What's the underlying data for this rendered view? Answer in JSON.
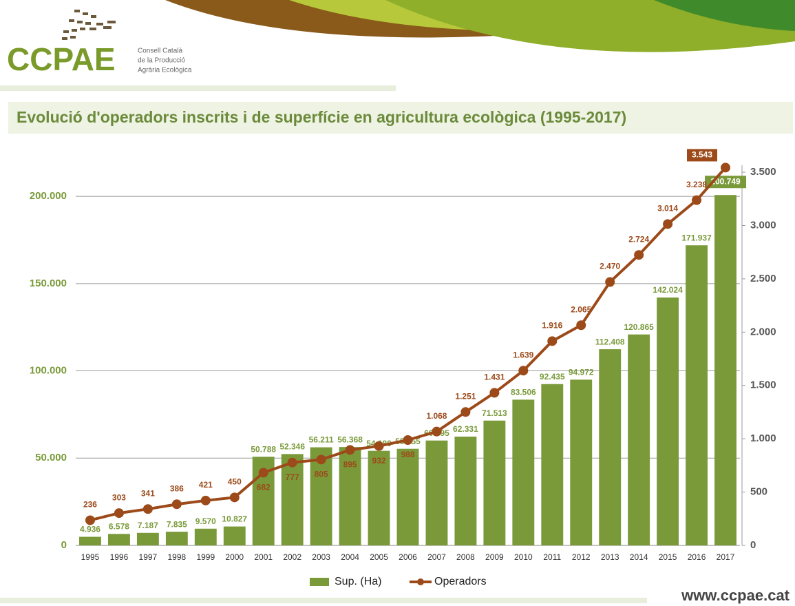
{
  "header": {
    "logo": "CCPAE",
    "org_lines": [
      "Consell Català",
      "de la Producció",
      "Agrària Ecològica"
    ]
  },
  "footer": {
    "url": "www.ccpae.cat"
  },
  "chart_data": {
    "type": "bar-line",
    "title": "Evolució d'operadors inscrits i de superfície en agricultura ecològica (1995-2017)",
    "categories": [
      "1995",
      "1996",
      "1997",
      "1998",
      "1999",
      "2000",
      "2001",
      "2002",
      "2003",
      "2004",
      "2005",
      "2006",
      "2007",
      "2008",
      "2009",
      "2010",
      "2011",
      "2012",
      "2013",
      "2014",
      "2015",
      "2016",
      "2017"
    ],
    "series": [
      {
        "name": "Sup. (Ha)",
        "type": "bar",
        "color": "#7a9a3a",
        "values": [
          4936,
          6578,
          7187,
          7835,
          9570,
          10827,
          50788,
          52346,
          56211,
          56368,
          54189,
          55355,
          60095,
          62331,
          71513,
          83506,
          92435,
          94972,
          112408,
          120865,
          142024,
          171937,
          200749
        ],
        "value_labels": [
          "4.936",
          "6.578",
          "7.187",
          "7.835",
          "9.570",
          "10.827",
          "50.788",
          "52.346",
          "56.211",
          "56.368",
          "54.189",
          "55.355",
          "60.095",
          "62.331",
          "71.513",
          "83.506",
          "92.435",
          "94.972",
          "112.408",
          "120.865",
          "142.024",
          "171.937",
          "200.749"
        ]
      },
      {
        "name": "Operadors",
        "type": "line",
        "axis": "y2",
        "color": "#9c4a1a",
        "values": [
          236,
          303,
          341,
          386,
          421,
          450,
          682,
          777,
          805,
          895,
          932,
          988,
          1068,
          1251,
          1431,
          1639,
          1916,
          2065,
          2470,
          2724,
          3014,
          3238,
          3543
        ],
        "value_labels": [
          "236",
          "303",
          "341",
          "386",
          "421",
          "450",
          "682",
          "777",
          "805",
          "895",
          "932",
          "988",
          "1.068",
          "1.251",
          "1.431",
          "1.639",
          "1.916",
          "2.065",
          "2.470",
          "2.724",
          "3.014",
          "3.238",
          "3.543"
        ]
      }
    ],
    "ylim": [
      0,
      217800
    ],
    "yticks": [
      0,
      {
        "value": 50000,
        "label": "50.000"
      },
      {
        "value": 100000,
        "label": "100.000"
      },
      {
        "value": 150000,
        "label": "150.000"
      },
      {
        "value": 200000,
        "label": "200.000"
      }
    ],
    "y2lim": [
      0,
      3565
    ],
    "y2ticks": [
      0,
      500,
      {
        "value": 1000,
        "label": "1.000"
      },
      {
        "value": 1500,
        "label": "1.500"
      },
      {
        "value": 2000,
        "label": "2.000"
      },
      {
        "value": 2500,
        "label": "2.500"
      },
      {
        "value": 3000,
        "label": "3.000"
      },
      {
        "value": 3500,
        "label": "3.500"
      }
    ],
    "grid": true,
    "legend": "bottom"
  }
}
